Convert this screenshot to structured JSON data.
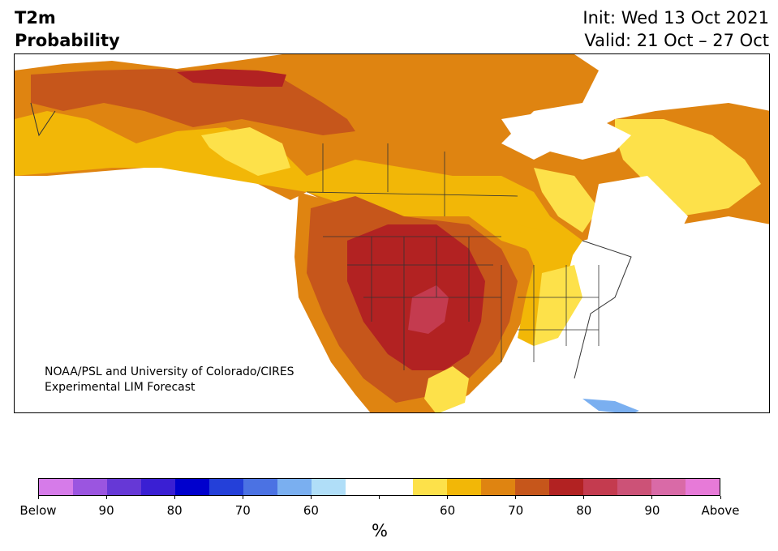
{
  "title": {
    "left_line1": "T2m",
    "left_line2": "Probability",
    "right_line1": "Init: Wed 13 Oct 2021",
    "right_line2": "Valid: 21 Oct – 27 Oct"
  },
  "map": {
    "credit_line1": "NOAA/PSL and University of Colorado/CIRES",
    "credit_line2": "Experimental LIM Forecast"
  },
  "colorbar": {
    "unit": "%",
    "colors": [
      "#d67be9",
      "#9b55e0",
      "#6638d6",
      "#3a1fd3",
      "#0000cd",
      "#2440d9",
      "#4b72e3",
      "#7aaff0",
      "#b0def8",
      "#ffffff",
      "#ffffff",
      "#fde14a",
      "#f2b707",
      "#df8411",
      "#c6561b",
      "#b22222",
      "#c43b4f",
      "#cc5277",
      "#d96aa7",
      "#e77ad8"
    ],
    "labels": [
      "Below",
      "90",
      "80",
      "70",
      "60",
      "",
      "60",
      "70",
      "80",
      "90",
      "Above"
    ]
  }
}
